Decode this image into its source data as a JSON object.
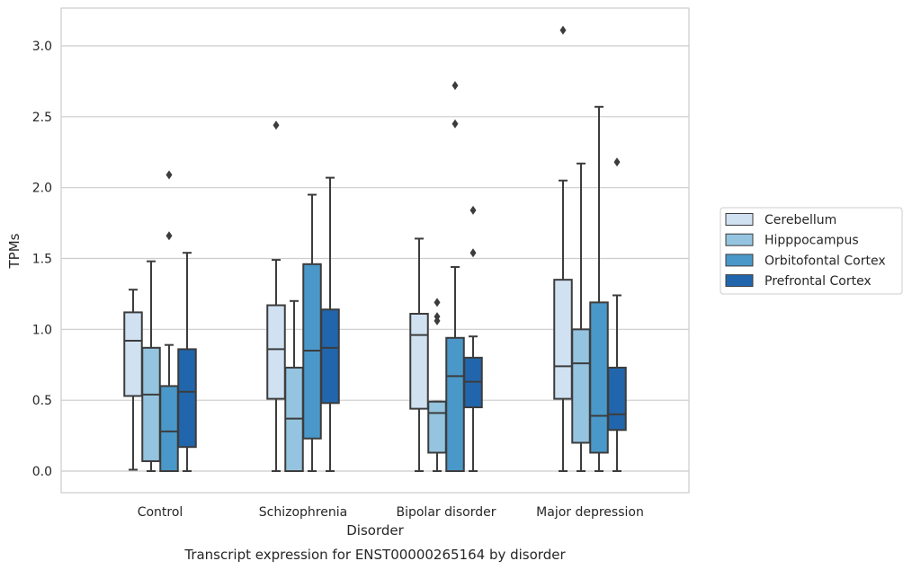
{
  "chart_data": {
    "type": "box",
    "caption": "Transcript expression for ENST00000265164 by disorder",
    "xlabel": "Disorder",
    "ylabel": "TPMs",
    "ylim": [
      -0.15,
      3.27
    ],
    "yticks": [
      "0.0",
      "0.5",
      "1.0",
      "1.5",
      "2.0",
      "2.5",
      "3.0"
    ],
    "grid": "horizontal",
    "legend_position": "right",
    "categories": [
      "Control",
      "Schizophrenia",
      "Bipolar disorder",
      "Major depression"
    ],
    "series": [
      {
        "name": "Cerebellum",
        "color": "#d0e1f2",
        "boxes": [
          {
            "whislo": 0.01,
            "q1": 0.53,
            "med": 0.92,
            "q3": 1.12,
            "whishi": 1.28,
            "fliers": []
          },
          {
            "whislo": 0.0,
            "q1": 0.51,
            "med": 0.86,
            "q3": 1.17,
            "whishi": 1.49,
            "fliers": [
              2.44
            ]
          },
          {
            "whislo": 0.0,
            "q1": 0.44,
            "med": 0.96,
            "q3": 1.11,
            "whishi": 1.64,
            "fliers": []
          },
          {
            "whislo": 0.0,
            "q1": 0.51,
            "med": 0.74,
            "q3": 1.35,
            "whishi": 2.05,
            "fliers": [
              3.11
            ]
          }
        ]
      },
      {
        "name": "Hipppocampus",
        "color": "#94c4df",
        "boxes": [
          {
            "whislo": 0.0,
            "q1": 0.07,
            "med": 0.54,
            "q3": 0.87,
            "whishi": 1.48,
            "fliers": []
          },
          {
            "whislo": 0.0,
            "q1": 0.0,
            "med": 0.37,
            "q3": 0.73,
            "whishi": 1.2,
            "fliers": []
          },
          {
            "whislo": 0.0,
            "q1": 0.13,
            "med": 0.41,
            "q3": 0.49,
            "whishi": 0.49,
            "fliers": [
              1.06,
              1.09,
              1.19
            ]
          },
          {
            "whislo": 0.0,
            "q1": 0.2,
            "med": 0.76,
            "q3": 1.0,
            "whishi": 2.17,
            "fliers": []
          }
        ]
      },
      {
        "name": "Orbitofontal Cortex",
        "color": "#4a98c9",
        "boxes": [
          {
            "whislo": 0.0,
            "q1": 0.0,
            "med": 0.28,
            "q3": 0.6,
            "whishi": 0.89,
            "fliers": [
              1.66,
              2.09
            ]
          },
          {
            "whislo": 0.0,
            "q1": 0.23,
            "med": 0.85,
            "q3": 1.46,
            "whishi": 1.95,
            "fliers": []
          },
          {
            "whislo": 0.0,
            "q1": 0.0,
            "med": 0.67,
            "q3": 0.94,
            "whishi": 1.44,
            "fliers": [
              2.45,
              2.72
            ]
          },
          {
            "whislo": 0.0,
            "q1": 0.13,
            "med": 0.39,
            "q3": 1.19,
            "whishi": 2.57,
            "fliers": []
          }
        ]
      },
      {
        "name": "Prefrontal Cortex",
        "color": "#2166ac",
        "boxes": [
          {
            "whislo": 0.0,
            "q1": 0.17,
            "med": 0.56,
            "q3": 0.86,
            "whishi": 1.54,
            "fliers": []
          },
          {
            "whislo": 0.0,
            "q1": 0.48,
            "med": 0.87,
            "q3": 1.14,
            "whishi": 2.07,
            "fliers": []
          },
          {
            "whislo": 0.0,
            "q1": 0.45,
            "med": 0.63,
            "q3": 0.8,
            "whishi": 0.95,
            "fliers": [
              1.54,
              1.84
            ]
          },
          {
            "whislo": 0.0,
            "q1": 0.29,
            "med": 0.4,
            "q3": 0.73,
            "whishi": 1.24,
            "fliers": [
              2.18
            ]
          }
        ]
      }
    ]
  }
}
